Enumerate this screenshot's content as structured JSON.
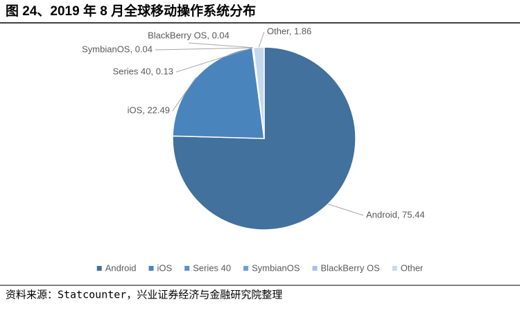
{
  "chart_data": {
    "type": "pie",
    "title": "图 24、2019 年 8 月全球移动操作系统分布",
    "source": "资料来源：Statcounter，兴业证券经济与金融研究院整理",
    "categories": [
      "Android",
      "iOS",
      "Series 40",
      "SymbianOS",
      "BlackBerry OS",
      "Other"
    ],
    "values": [
      75.44,
      22.49,
      0.13,
      0.04,
      0.04,
      1.86
    ],
    "value_labels": [
      "Android, 75.44",
      "iOS, 22.49",
      "Series 40, 0.13",
      "SymbianOS, 0.04",
      "BlackBerry OS, 0.04",
      "Other, 1.86"
    ],
    "colors": [
      "#41719c",
      "#4a84bd",
      "#5b8fc7",
      "#6f9fd3",
      "#a8c3e5",
      "#c6d8ee"
    ],
    "legend": "bottom"
  }
}
